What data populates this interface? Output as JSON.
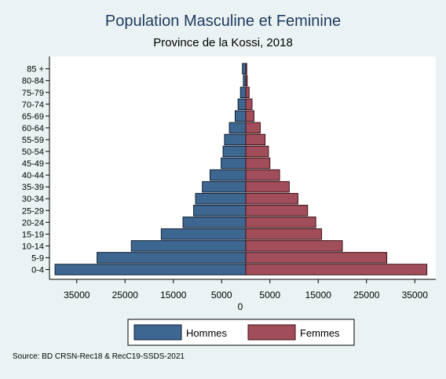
{
  "chart_data": {
    "type": "bar",
    "orientation": "horizontal",
    "title": "Population Masculine et Feminine",
    "subtitle": "Province de la Kossi, 2018",
    "categories": [
      "0-4",
      "5-9",
      "10-14",
      "15-19",
      "20-24",
      "25-29",
      "30-34",
      "35-39",
      "40-44",
      "45-49",
      "50-54",
      "55-59",
      "60-64",
      "65-69",
      "70-74",
      "75-79",
      "80-84",
      "85 +"
    ],
    "series": [
      {
        "name": "Hommes",
        "color": "#3d6791",
        "values": [
          39500,
          30800,
          23700,
          17500,
          13000,
          10800,
          10400,
          9000,
          7400,
          5100,
          4700,
          4400,
          3400,
          2200,
          1600,
          1100,
          500,
          700
        ]
      },
      {
        "name": "Femmes",
        "color": "#a24e5a",
        "values": [
          37500,
          29200,
          20000,
          15700,
          14500,
          12800,
          10800,
          9000,
          7000,
          5000,
          4700,
          4000,
          3000,
          1700,
          1300,
          700,
          300,
          200
        ]
      }
    ],
    "xticks": [
      {
        "value": -35000,
        "label": "35000"
      },
      {
        "value": -25000,
        "label": "25000"
      },
      {
        "value": -15000,
        "label": "15000"
      },
      {
        "value": -5000,
        "label": "5000"
      },
      {
        "value": 5000,
        "label": "5000"
      },
      {
        "value": 15000,
        "label": "15000"
      },
      {
        "value": 25000,
        "label": "25000"
      },
      {
        "value": 35000,
        "label": "35000"
      }
    ],
    "xlabel": "0",
    "xlim": [
      -40500,
      38500
    ],
    "grid": false,
    "legend": "bottom"
  },
  "source": "Source: BD CRSN-Rec18 & RecC19-SSDS-2021"
}
